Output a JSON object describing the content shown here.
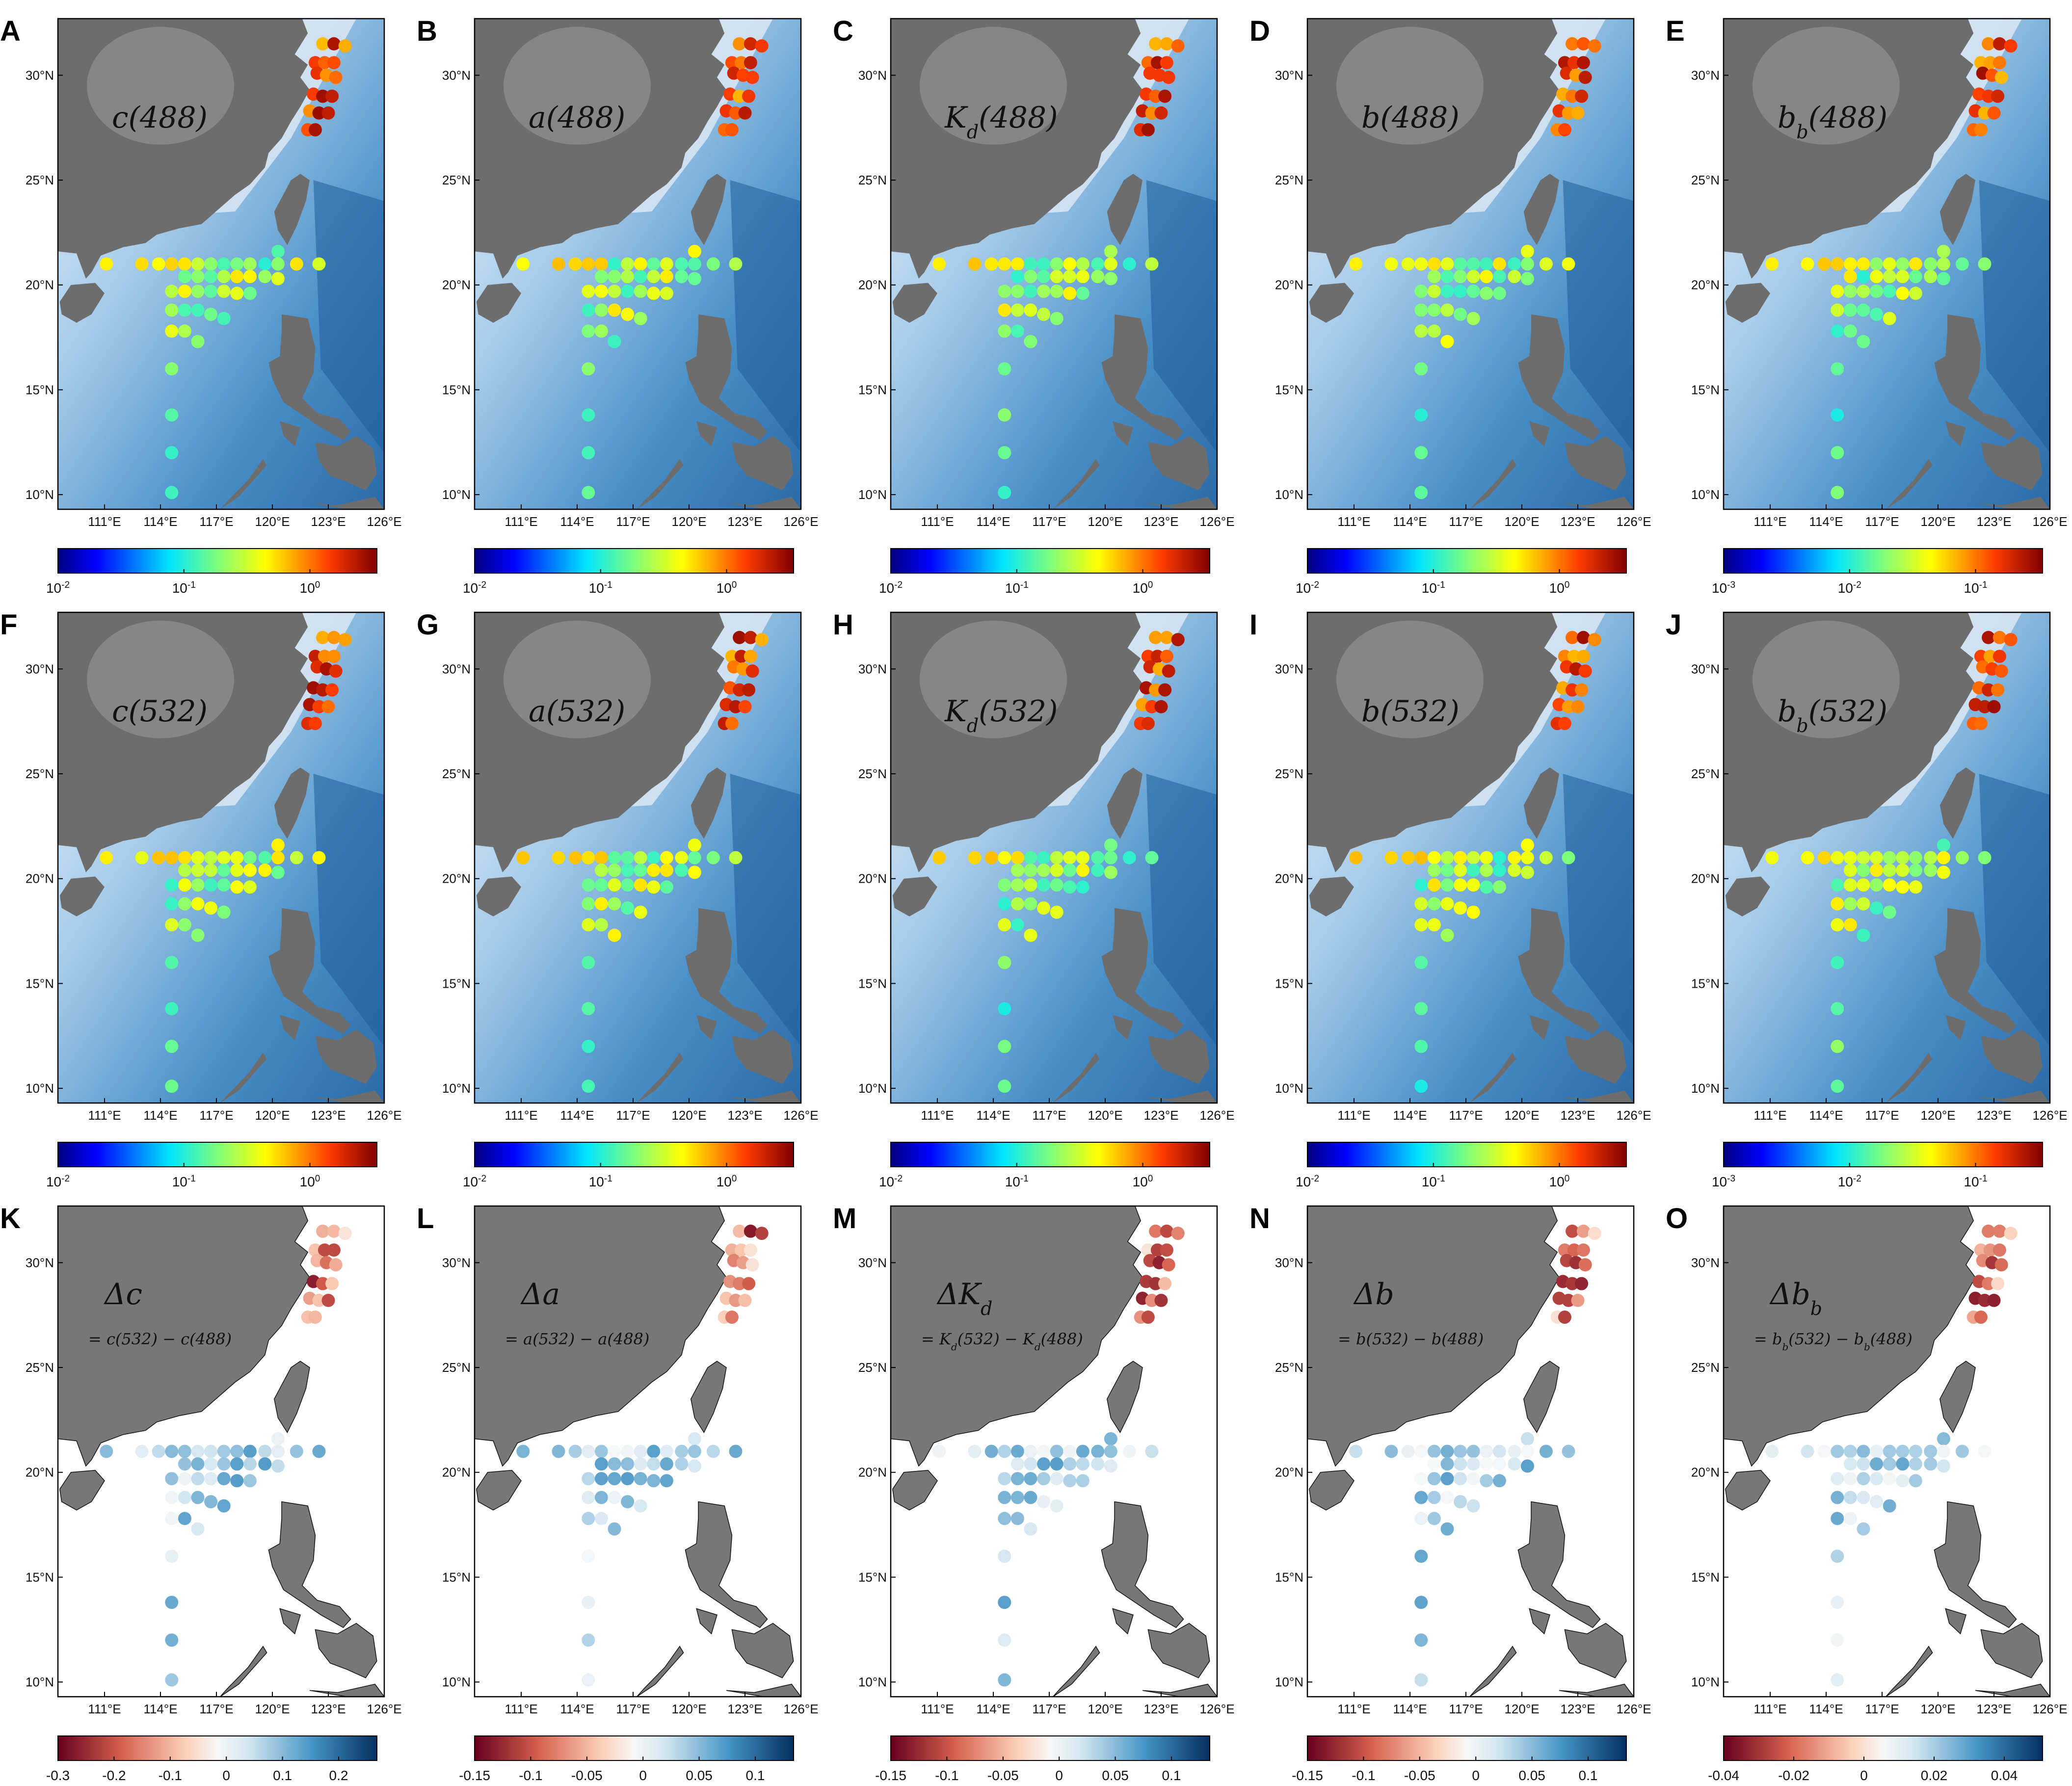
{
  "figure": {
    "lon_ticks": [
      "111°E",
      "114°E",
      "117°E",
      "120°E",
      "123°E",
      "126°E"
    ],
    "lat_ticks": [
      "10°N",
      "15°N",
      "20°N",
      "25°N",
      "30°N"
    ],
    "panels": [
      {
        "letter": "A",
        "row": 0,
        "col": 0,
        "var": "c(488)",
        "eq": "",
        "cb": [
          "10-2",
          "10-1",
          "100"
        ],
        "cmap": "jet"
      },
      {
        "letter": "B",
        "row": 0,
        "col": 1,
        "var": "a(488)",
        "eq": "",
        "cb": [
          "10-2",
          "10-1",
          "100"
        ],
        "cmap": "jet"
      },
      {
        "letter": "C",
        "row": 0,
        "col": 2,
        "var": "Kd(488)",
        "eq": "",
        "cb": [
          "10-2",
          "10-1",
          "100"
        ],
        "cmap": "jet"
      },
      {
        "letter": "D",
        "row": 0,
        "col": 3,
        "var": "b(488)",
        "eq": "",
        "cb": [
          "10-2",
          "10-1",
          "100"
        ],
        "cmap": "jet"
      },
      {
        "letter": "E",
        "row": 0,
        "col": 4,
        "var": "bb(488)",
        "eq": "",
        "cb": [
          "10-3",
          "10-2",
          "10-1"
        ],
        "cmap": "jet"
      },
      {
        "letter": "F",
        "row": 1,
        "col": 0,
        "var": "c(532)",
        "eq": "",
        "cb": [
          "10-2",
          "10-1",
          "100"
        ],
        "cmap": "jet"
      },
      {
        "letter": "G",
        "row": 1,
        "col": 1,
        "var": "a(532)",
        "eq": "",
        "cb": [
          "10-2",
          "10-1",
          "100"
        ],
        "cmap": "jet"
      },
      {
        "letter": "H",
        "row": 1,
        "col": 2,
        "var": "Kd(532)",
        "eq": "",
        "cb": [
          "10-2",
          "10-1",
          "100"
        ],
        "cmap": "jet"
      },
      {
        "letter": "I",
        "row": 1,
        "col": 3,
        "var": "b(532)",
        "eq": "",
        "cb": [
          "10-2",
          "10-1",
          "100"
        ],
        "cmap": "jet"
      },
      {
        "letter": "J",
        "row": 1,
        "col": 4,
        "var": "bb(532)",
        "eq": "",
        "cb": [
          "10-3",
          "10-2",
          "10-1"
        ],
        "cmap": "jet"
      },
      {
        "letter": "K",
        "row": 2,
        "col": 0,
        "var": "Δc",
        "eq": "= c(532) − c(488)",
        "cb": [
          "-0.3",
          "-0.2",
          "-0.1",
          "0",
          "0.1",
          "0.2"
        ],
        "cmap": "div"
      },
      {
        "letter": "L",
        "row": 2,
        "col": 1,
        "var": "Δa",
        "eq": "= a(532) − a(488)",
        "cb": [
          "-0.15",
          "-0.1",
          "-0.05",
          "0",
          "0.05",
          "0.1"
        ],
        "cmap": "div"
      },
      {
        "letter": "M",
        "row": 2,
        "col": 2,
        "var": "ΔKd",
        "eq": "= Kd(532) − Kd(488)",
        "cb": [
          "-0.15",
          "-0.1",
          "-0.05",
          "0",
          "0.05",
          "0.1"
        ],
        "cmap": "div"
      },
      {
        "letter": "N",
        "row": 2,
        "col": 3,
        "var": "Δb",
        "eq": "= b(532) − b(488)",
        "cb": [
          "-0.15",
          "-0.1",
          "-0.05",
          "0",
          "0.05",
          "0.1"
        ],
        "cmap": "div"
      },
      {
        "letter": "O",
        "row": 2,
        "col": 4,
        "var": "Δbb",
        "eq": "= bb(532) − bb(488)",
        "cb": [
          "-0.04",
          "-0.02",
          "0",
          "0.02",
          "0.04"
        ],
        "cmap": "div"
      }
    ]
  }
}
